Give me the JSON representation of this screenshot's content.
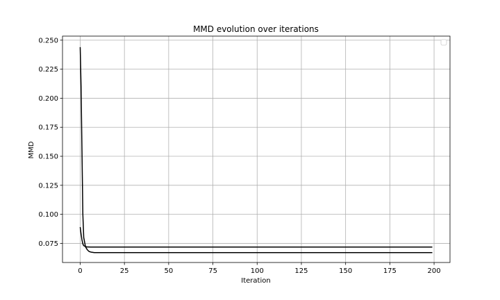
{
  "chart_data": {
    "type": "line",
    "title": "MMD evolution over iterations",
    "xlabel": "Iteration",
    "ylabel": "MMD",
    "xlim": [
      -10,
      209
    ],
    "ylim": [
      0.0585,
      0.2535
    ],
    "xticks": [
      0,
      25,
      50,
      75,
      100,
      125,
      150,
      175,
      200
    ],
    "xtick_labels": [
      "0",
      "25",
      "50",
      "75",
      "100",
      "125",
      "150",
      "175",
      "200"
    ],
    "yticks": [
      0.075,
      0.1,
      0.125,
      0.15,
      0.175,
      0.2,
      0.225,
      0.25
    ],
    "ytick_labels": [
      "0.075",
      "0.100",
      "0.125",
      "0.150",
      "0.175",
      "0.200",
      "0.225",
      "0.250"
    ],
    "grid": true,
    "legend": "top-right (empty)",
    "series": [
      {
        "color": "#000000",
        "x": [
          0,
          0.5,
          1,
          1.5,
          2,
          3,
          4,
          5,
          6,
          8,
          10,
          15,
          20,
          50,
          100,
          150,
          199
        ],
        "values": [
          0.244,
          0.21,
          0.155,
          0.1,
          0.08,
          0.072,
          0.0695,
          0.068,
          0.0675,
          0.067,
          0.067,
          0.067,
          0.067,
          0.067,
          0.067,
          0.067,
          0.067
        ]
      },
      {
        "color": "#000000",
        "x": [
          0,
          0.5,
          1,
          1.5,
          2,
          3,
          4,
          6,
          10,
          50,
          100,
          150,
          199
        ],
        "values": [
          0.089,
          0.083,
          0.078,
          0.0745,
          0.073,
          0.0722,
          0.0719,
          0.0718,
          0.0718,
          0.0718,
          0.0718,
          0.0718,
          0.0718
        ]
      }
    ]
  }
}
